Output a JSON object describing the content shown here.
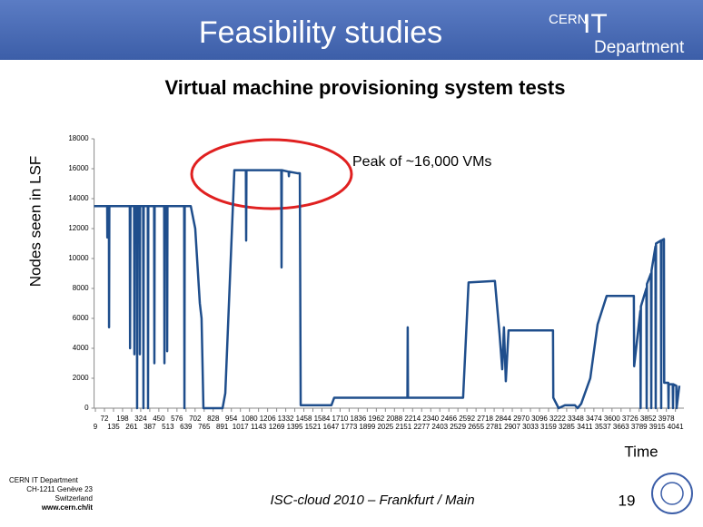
{
  "header": {
    "title": "Feasibility studies",
    "logo_cern": "CERN",
    "logo_it": "IT",
    "logo_department": "Department"
  },
  "footer": {
    "org": "CERN IT Department",
    "address": "CH-1211 Genève 23",
    "country": "Switzerland",
    "url": "www.cern.ch/it",
    "event": "ISC-cloud 2010 – Frankfurt / Main",
    "page": "19"
  },
  "chart_data": {
    "type": "line",
    "title": "Virtual machine provisioning system tests",
    "y_label": "Nodes seen in LSF",
    "x_label": "Time",
    "annotation": "Peak of ~16,000 VMs",
    "color": "#1f4e8c",
    "x": [
      0,
      91,
      92,
      93,
      103,
      104,
      106,
      248,
      250,
      253,
      278,
      280,
      282,
      297,
      299,
      301,
      316,
      318,
      320,
      341,
      343,
      345,
      373,
      375,
      377,
      417,
      419,
      421,
      487,
      489,
      491,
      506,
      508,
      510,
      626,
      628,
      630,
      672,
      703,
      735,
      747,
      760,
      893,
      912,
      975,
      1055,
      1057,
      1059,
      1301,
      1303,
      1305,
      1352,
      1354,
      1356,
      1412,
      1430,
      1436,
      1650,
      1669,
      2178,
      2180,
      2182,
      2565,
      2603,
      2786,
      2818,
      2837,
      2849,
      2862,
      2881,
      3190,
      3192,
      3229,
      3273,
      3342,
      3361,
      3386,
      3449,
      3500,
      3563,
      3752,
      3754,
      3797,
      3799,
      3801,
      3839,
      3841,
      3843,
      3871,
      3873,
      3875,
      3902,
      3904,
      3906,
      3940,
      3942,
      3944,
      3961,
      3963,
      3991,
      3993,
      3995,
      4022,
      4024,
      4026,
      4047,
      4049,
      4068
    ],
    "values": [
      13500,
      13500,
      11400,
      13500,
      13500,
      5400,
      13500,
      13500,
      4000,
      13500,
      13500,
      3600,
      13500,
      13500,
      0,
      13500,
      13500,
      3600,
      13500,
      13500,
      0,
      13500,
      13500,
      0,
      13500,
      13500,
      3000,
      13500,
      13500,
      3000,
      13500,
      13500,
      3800,
      13500,
      13500,
      0,
      13500,
      13500,
      12000,
      7000,
      6000,
      0,
      0,
      1000,
      15900,
      15900,
      11200,
      15900,
      15900,
      9400,
      15900,
      15800,
      15500,
      15800,
      15700,
      15700,
      200,
      200,
      700,
      700,
      5400,
      700,
      700,
      8400,
      8500,
      5000,
      2600,
      5400,
      1800,
      5200,
      5200,
      700,
      0,
      200,
      200,
      0,
      300,
      2000,
      5600,
      7500,
      7500,
      2800,
      6500,
      0,
      6800,
      8000,
      0,
      8300,
      9000,
      0,
      9200,
      10800,
      0,
      11000,
      11200,
      0,
      11200,
      11300,
      1700,
      1700,
      0,
      1600,
      1600,
      0,
      1600,
      1500,
      0,
      1500
    ],
    "xlim": [
      0,
      4100
    ],
    "ylim": [
      0,
      18000
    ],
    "yticks": [
      0,
      2000,
      4000,
      6000,
      8000,
      10000,
      12000,
      14000,
      16000,
      18000
    ],
    "xticks": [
      9,
      72,
      135,
      198,
      261,
      324,
      387,
      450,
      513,
      576,
      639,
      702,
      765,
      828,
      891,
      954,
      1017,
      1080,
      1143,
      1206,
      1269,
      1332,
      1395,
      1458,
      1521,
      1584,
      1647,
      1710,
      1773,
      1836,
      1899,
      1962,
      2025,
      2088,
      2151,
      2214,
      2277,
      2340,
      2403,
      2466,
      2529,
      2592,
      2655,
      2718,
      2781,
      2844,
      2907,
      2970,
      3033,
      3096,
      3159,
      3222,
      3285,
      3348,
      3411,
      3474,
      3537,
      3600,
      3663,
      3726,
      3789,
      3852,
      3915,
      3978,
      4041
    ]
  }
}
